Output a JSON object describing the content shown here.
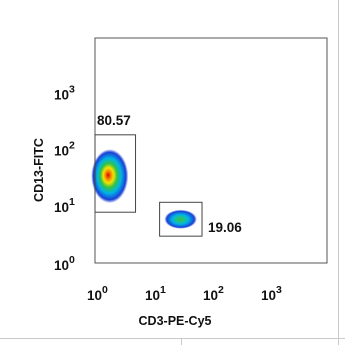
{
  "chart_data": {
    "type": "scatter",
    "subtype": "flow-cytometry-density",
    "xlabel": "CD3-PE-Cy5",
    "ylabel": "CD13-FITC",
    "x_scale": "log",
    "y_scale": "log",
    "xlim": [
      1,
      10000
    ],
    "ylim": [
      1,
      10000
    ],
    "x_ticks": [
      {
        "base": "10",
        "exp": "0",
        "value": 1
      },
      {
        "base": "10",
        "exp": "1",
        "value": 10
      },
      {
        "base": "10",
        "exp": "2",
        "value": 100
      },
      {
        "base": "10",
        "exp": "3",
        "value": 1000
      }
    ],
    "y_ticks": [
      {
        "base": "10",
        "exp": "0",
        "value": 1
      },
      {
        "base": "10",
        "exp": "1",
        "value": 10
      },
      {
        "base": "10",
        "exp": "2",
        "value": 100
      },
      {
        "base": "10",
        "exp": "3",
        "value": 1000
      }
    ],
    "grid": false,
    "gates": [
      {
        "label": "80.57",
        "x_range": [
          1,
          5
        ],
        "y_range": [
          8,
          190
        ],
        "label_position": "above"
      },
      {
        "label": "19.06",
        "x_range": [
          13,
          70
        ],
        "y_range": [
          3,
          12
        ],
        "label_position": "right"
      }
    ],
    "populations": [
      {
        "center": [
          1.8,
          35
        ],
        "spread_decades": [
          0.32,
          0.48
        ]
      },
      {
        "center": [
          30,
          6
        ],
        "spread_decades": [
          0.28,
          0.17
        ]
      }
    ],
    "colors": {
      "density_low": "#1a3fd6",
      "density_mid_low": "#00b4e6",
      "density_mid": "#2fc24a",
      "density_mid_high": "#f5e400",
      "density_high": "#f08000",
      "density_peak": "#e00000",
      "axes": "#555555"
    }
  }
}
